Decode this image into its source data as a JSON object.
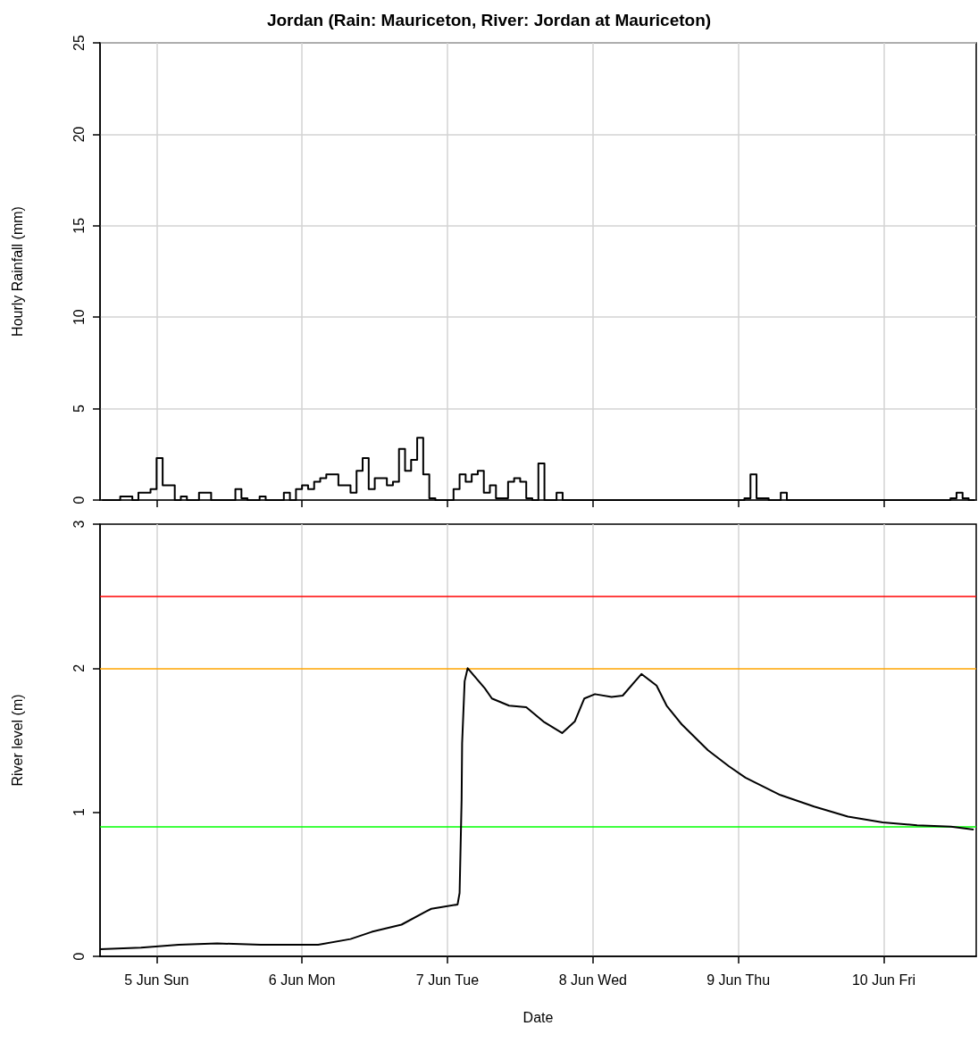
{
  "chart_data": [
    {
      "type": "step",
      "title": "Jordan (Rain: Mauriceton, River: Jordan at Mauriceton)",
      "ylabel": "Hourly Rainfall (mm)",
      "color": "#000000",
      "x": [
        "--06-04T15:00",
        "--06-04T18:00",
        "--06-04T20:00",
        "--06-04T21:00",
        "--06-04T23:00",
        "--06-05T00:00",
        "--06-05T01:00",
        "--06-05T03:00",
        "--06-05T04:00",
        "--06-05T05:00",
        "--06-05T07:00",
        "--06-05T09:00",
        "--06-05T13:00",
        "--06-05T14:00",
        "--06-05T15:00",
        "--06-05T17:00",
        "--06-05T18:00",
        "--06-05T21:00",
        "--06-05T22:00",
        "--06-05T23:00",
        "--06-06T00:00",
        "--06-06T01:00",
        "--06-06T02:00",
        "--06-06T03:00",
        "--06-06T04:00",
        "--06-06T06:00",
        "--06-06T08:00",
        "--06-06T09:00",
        "--06-06T10:00",
        "--06-06T11:00",
        "--06-06T12:00",
        "--06-06T14:00",
        "--06-06T15:00",
        "--06-06T16:00",
        "--06-06T17:00",
        "--06-06T18:00",
        "--06-06T19:00",
        "--06-06T20:00",
        "--06-06T21:00",
        "--06-06T22:00",
        "--06-07T01:00",
        "--06-07T02:00",
        "--06-07T03:00",
        "--06-07T04:00",
        "--06-07T05:00",
        "--06-07T06:00",
        "--06-07T07:00",
        "--06-07T08:00",
        "--06-07T10:00",
        "--06-07T11:00",
        "--06-07T12:00",
        "--06-07T13:00",
        "--06-07T14:00",
        "--06-07T15:00",
        "--06-07T16:00",
        "--06-07T18:00",
        "--06-07T19:00",
        "--06-09T01:00",
        "--06-09T02:00",
        "--06-09T03:00",
        "--06-09T05:00",
        "--06-09T07:00",
        "--06-09T08:00",
        "--06-10T11:00",
        "--06-10T12:00",
        "--06-10T13:00",
        "--06-10T14:00",
        "--06-10T15:00"
      ],
      "values": [
        0,
        0.2,
        0,
        0.4,
        0.6,
        2.3,
        0.8,
        0,
        0.2,
        0,
        0.4,
        0,
        0.6,
        0.1,
        0,
        0.2,
        0,
        0.4,
        0,
        0.6,
        0.8,
        0.6,
        1.0,
        1.2,
        1.4,
        0.8,
        0.4,
        1.6,
        2.3,
        0.6,
        1.2,
        0.8,
        1.0,
        2.8,
        1.6,
        2.2,
        3.4,
        1.4,
        0.1,
        0,
        0.6,
        1.4,
        1.0,
        1.4,
        1.6,
        0.4,
        0.8,
        0.1,
        1.0,
        1.2,
        1.0,
        0.1,
        0,
        2.0,
        0,
        0.4,
        0,
        0.1,
        1.4,
        0.1,
        0,
        0.4,
        0,
        0.1,
        0.4,
        0.1,
        0,
        0
      ],
      "xlim": [
        "--06-04T14:40",
        "--06-10T15:15"
      ],
      "xticks": [
        {
          "value": "--06-05",
          "label": null
        },
        {
          "value": "--06-06",
          "label": null
        },
        {
          "value": "--06-07",
          "label": null
        },
        {
          "value": "--06-08",
          "label": null
        },
        {
          "value": "--06-09",
          "label": null
        },
        {
          "value": "--06-10",
          "label": null
        }
      ],
      "ylim": [
        0,
        25
      ],
      "yticks": [
        0,
        5,
        10,
        15,
        20,
        25
      ],
      "grid": true,
      "tick_labels": "y"
    },
    {
      "type": "line",
      "xlabel": "Date",
      "ylabel": "River level (m)",
      "color": "#000000",
      "x": [
        "--06-04T14:40",
        "--06-04T21:25",
        "--06-05T03:40",
        "--06-05T10:00",
        "--06-05T17:10",
        "--06-06T02:40",
        "--06-06T08:00",
        "--06-06T11:30",
        "--06-06T16:25",
        "--06-06T20:25",
        "--06-06T21:20",
        "--06-07T01:40",
        "--06-07T02:00",
        "--06-07T02:20",
        "--06-07T02:25",
        "--06-07T02:50",
        "--06-07T03:20",
        "--06-07T06:10",
        "--06-07T07:20",
        "--06-07T10:10",
        "--06-07T13:00",
        "--06-07T15:50",
        "--06-07T18:55",
        "--06-07T21:00",
        "--06-07T22:35",
        "--06-08T00:20",
        "--06-08T03:05",
        "--06-08T04:55",
        "--06-08T08:00",
        "--06-08T10:30",
        "--06-08T12:10",
        "--06-08T14:40",
        "--06-08T19:00",
        "--06-08T22:25",
        "--06-09T01:10",
        "--06-09T06:55",
        "--06-09T12:30",
        "--06-09T18:05",
        "--06-09T23:50",
        "--06-10T05:30",
        "--06-10T11:05",
        "--06-10T14:50"
      ],
      "values": [
        0.05,
        0.06,
        0.08,
        0.09,
        0.08,
        0.08,
        0.12,
        0.17,
        0.22,
        0.31,
        0.33,
        0.36,
        0.44,
        1.09,
        1.48,
        1.91,
        2.0,
        1.86,
        1.79,
        1.74,
        1.73,
        1.63,
        1.55,
        1.63,
        1.79,
        1.82,
        1.8,
        1.81,
        1.96,
        1.88,
        1.74,
        1.61,
        1.43,
        1.32,
        1.24,
        1.12,
        1.04,
        0.97,
        0.93,
        0.91,
        0.9,
        0.88
      ],
      "xlim": [
        "--06-04T14:40",
        "--06-10T15:15"
      ],
      "xticks": [
        {
          "value": "--06-05",
          "label": "5 Jun Sun"
        },
        {
          "value": "--06-06",
          "label": "6 Jun Mon"
        },
        {
          "value": "--06-07",
          "label": "7 Jun Tue"
        },
        {
          "value": "--06-08",
          "label": "8 Jun Wed"
        },
        {
          "value": "--06-09",
          "label": "9 Jun Thu"
        },
        {
          "value": "--06-10",
          "label": "10 Jun Fri"
        }
      ],
      "ylim": [
        0,
        3
      ],
      "yticks": [
        0,
        1,
        2,
        3
      ],
      "grid": "x",
      "ref_lines": [
        {
          "axis": "y",
          "value": 2.5,
          "color": "#ff0000"
        },
        {
          "axis": "y",
          "value": 2.0,
          "color": "#ffa500"
        },
        {
          "axis": "y",
          "value": 0.9,
          "color": "#00ff00"
        }
      ]
    }
  ]
}
